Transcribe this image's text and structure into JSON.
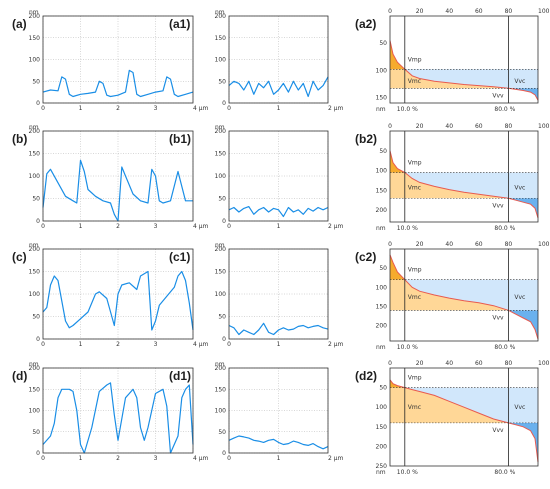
{
  "colors": {
    "profile": "#1a8ee6",
    "peak_fill": "#f6a623",
    "core_material_fill": "#ffd591",
    "core_void_fill": "#cfe6fb",
    "valley_void_fill": "#5aa9ec",
    "abbott_curve": "#e85a4f"
  },
  "annotations": {
    "vmp": "Vmp",
    "vmc": "Vmc",
    "vvc": "Vvc",
    "vvv": "Vvv",
    "mr1": "10.0 %",
    "mr2": "80.0 %"
  },
  "chart_data": [
    {
      "panel": "(a)",
      "type": "line",
      "ylabel": "nm",
      "ylim": [
        0,
        200
      ],
      "y_ticks": [
        0,
        50,
        100,
        150,
        200
      ],
      "xlim": [
        0,
        4
      ],
      "x_ticks": [
        "0",
        "1",
        "2",
        "3",
        "4 µm"
      ],
      "x": [
        0,
        0.2,
        0.4,
        0.5,
        0.6,
        0.7,
        0.8,
        1.0,
        1.2,
        1.4,
        1.5,
        1.6,
        1.7,
        1.8,
        2.0,
        2.2,
        2.3,
        2.4,
        2.5,
        2.6,
        2.8,
        3.0,
        3.2,
        3.3,
        3.4,
        3.5,
        3.6,
        3.8,
        4.0
      ],
      "y": [
        25,
        30,
        28,
        60,
        55,
        20,
        15,
        20,
        22,
        25,
        50,
        45,
        18,
        15,
        18,
        25,
        75,
        70,
        20,
        15,
        20,
        25,
        28,
        60,
        55,
        20,
        15,
        20,
        25
      ]
    },
    {
      "panel": "(a1)",
      "type": "line",
      "ylabel": "nm",
      "ylim": [
        0,
        200
      ],
      "y_ticks": [
        0,
        50,
        100,
        150,
        200
      ],
      "xlim": [
        0,
        2
      ],
      "x_ticks": [
        "0",
        "1",
        "2 µm"
      ],
      "x": [
        0,
        0.1,
        0.2,
        0.3,
        0.4,
        0.5,
        0.6,
        0.7,
        0.8,
        0.9,
        1.0,
        1.1,
        1.2,
        1.3,
        1.4,
        1.5,
        1.6,
        1.7,
        1.8,
        1.9,
        2.0
      ],
      "y": [
        40,
        50,
        45,
        30,
        50,
        20,
        45,
        35,
        50,
        20,
        30,
        45,
        25,
        50,
        30,
        45,
        15,
        50,
        30,
        40,
        60
      ]
    },
    {
      "panel": "(a2)",
      "type": "area",
      "ylabel": "nm",
      "ylim": [
        0,
        160
      ],
      "y_ticks": [
        50,
        100,
        150
      ],
      "xlim": [
        0,
        100
      ],
      "x_ticks": [
        "0",
        "20",
        "40",
        "60",
        "80",
        "100 %"
      ],
      "x": [
        0,
        2,
        5,
        10,
        15,
        20,
        30,
        40,
        50,
        60,
        70,
        80,
        85,
        90,
        95,
        98,
        100
      ],
      "y": [
        45,
        70,
        85,
        98,
        110,
        115,
        120,
        123,
        126,
        128,
        130,
        133,
        135,
        137,
        140,
        145,
        155
      ]
    },
    {
      "panel": "(b)",
      "type": "line",
      "ylabel": "nm",
      "ylim": [
        0,
        200
      ],
      "y_ticks": [
        0,
        50,
        100,
        150,
        200
      ],
      "xlim": [
        0,
        4
      ],
      "x_ticks": [
        "0",
        "1",
        "2",
        "3",
        "4 µm"
      ],
      "x": [
        0,
        0.1,
        0.2,
        0.4,
        0.6,
        0.8,
        0.9,
        1.0,
        1.1,
        1.2,
        1.4,
        1.6,
        1.8,
        1.9,
        2.0,
        2.1,
        2.2,
        2.4,
        2.6,
        2.8,
        2.9,
        3.0,
        3.1,
        3.2,
        3.4,
        3.6,
        3.8,
        4.0
      ],
      "y": [
        30,
        105,
        115,
        85,
        55,
        45,
        40,
        135,
        110,
        70,
        55,
        45,
        40,
        15,
        0,
        120,
        100,
        60,
        45,
        40,
        115,
        100,
        45,
        40,
        45,
        110,
        45,
        45
      ]
    },
    {
      "panel": "(b1)",
      "type": "line",
      "ylabel": "nm",
      "ylim": [
        0,
        200
      ],
      "y_ticks": [
        0,
        50,
        100,
        150,
        200
      ],
      "xlim": [
        0,
        2
      ],
      "x_ticks": [
        "0",
        "1",
        "2 µm"
      ],
      "x": [
        0,
        0.1,
        0.2,
        0.3,
        0.4,
        0.5,
        0.6,
        0.7,
        0.8,
        0.9,
        1.0,
        1.1,
        1.2,
        1.3,
        1.4,
        1.5,
        1.6,
        1.7,
        1.8,
        1.9,
        2.0
      ],
      "y": [
        25,
        30,
        20,
        28,
        32,
        15,
        25,
        30,
        20,
        28,
        25,
        10,
        30,
        20,
        25,
        15,
        28,
        22,
        30,
        25,
        30
      ]
    },
    {
      "panel": "(b2)",
      "type": "area",
      "ylabel": "nm",
      "ylim": [
        0,
        230
      ],
      "y_ticks": [
        50,
        100,
        150,
        200
      ],
      "xlim": [
        0,
        100
      ],
      "x_ticks": [
        "0",
        "20",
        "40",
        "60",
        "80",
        "100 %"
      ],
      "x": [
        0,
        2,
        5,
        10,
        15,
        20,
        30,
        40,
        50,
        60,
        70,
        80,
        85,
        90,
        95,
        98,
        100
      ],
      "y": [
        50,
        80,
        95,
        105,
        120,
        130,
        140,
        148,
        155,
        160,
        165,
        170,
        175,
        180,
        185,
        195,
        220
      ]
    },
    {
      "panel": "(c)",
      "type": "line",
      "ylabel": "nm",
      "ylim": [
        0,
        200
      ],
      "y_ticks": [
        0,
        50,
        100,
        150,
        200
      ],
      "xlim": [
        0,
        4
      ],
      "x_ticks": [
        "0",
        "1",
        "2",
        "3",
        "4 µm"
      ],
      "x": [
        0,
        0.1,
        0.2,
        0.3,
        0.4,
        0.6,
        0.7,
        0.8,
        1.0,
        1.2,
        1.4,
        1.5,
        1.7,
        1.9,
        2.0,
        2.1,
        2.3,
        2.5,
        2.6,
        2.8,
        2.9,
        3.0,
        3.1,
        3.3,
        3.5,
        3.6,
        3.7,
        3.8,
        3.9,
        4.0
      ],
      "y": [
        60,
        70,
        120,
        140,
        130,
        40,
        25,
        30,
        45,
        60,
        100,
        105,
        90,
        30,
        100,
        120,
        125,
        110,
        140,
        150,
        20,
        40,
        75,
        95,
        115,
        140,
        150,
        130,
        80,
        20
      ]
    },
    {
      "panel": "(c1)",
      "type": "line",
      "ylabel": "nm",
      "ylim": [
        0,
        200
      ],
      "y_ticks": [
        0,
        50,
        100,
        150,
        200
      ],
      "xlim": [
        0,
        2
      ],
      "x_ticks": [
        "0",
        "1",
        "2 µm"
      ],
      "x": [
        0,
        0.1,
        0.2,
        0.3,
        0.4,
        0.5,
        0.6,
        0.7,
        0.8,
        0.9,
        1.0,
        1.1,
        1.2,
        1.3,
        1.4,
        1.5,
        1.6,
        1.7,
        1.8,
        1.9,
        2.0
      ],
      "y": [
        30,
        25,
        10,
        20,
        15,
        10,
        20,
        35,
        15,
        10,
        20,
        25,
        20,
        22,
        28,
        30,
        25,
        28,
        30,
        25,
        22
      ]
    },
    {
      "panel": "(c2)",
      "type": "area",
      "ylabel": "nm",
      "ylim": [
        0,
        240
      ],
      "y_ticks": [
        50,
        100,
        150,
        200
      ],
      "xlim": [
        0,
        100
      ],
      "x_ticks": [
        "0",
        "20",
        "40",
        "60",
        "80",
        "100 %"
      ],
      "x": [
        0,
        2,
        5,
        10,
        15,
        20,
        30,
        40,
        50,
        60,
        70,
        80,
        85,
        90,
        95,
        98,
        100
      ],
      "y": [
        15,
        35,
        60,
        80,
        100,
        110,
        120,
        128,
        135,
        140,
        148,
        160,
        170,
        180,
        190,
        210,
        235
      ]
    },
    {
      "panel": "(d)",
      "type": "line",
      "ylabel": "nm",
      "ylim": [
        0,
        200
      ],
      "y_ticks": [
        0,
        50,
        100,
        150,
        200
      ],
      "xlim": [
        0,
        4
      ],
      "x_ticks": [
        "0",
        "1",
        "2",
        "3",
        "4 µm"
      ],
      "x": [
        0,
        0.2,
        0.3,
        0.4,
        0.5,
        0.7,
        0.8,
        0.9,
        1.0,
        1.1,
        1.3,
        1.5,
        1.7,
        1.8,
        1.9,
        2.0,
        2.2,
        2.4,
        2.5,
        2.6,
        2.7,
        2.8,
        3.0,
        3.2,
        3.3,
        3.4,
        3.6,
        3.7,
        3.8,
        3.9,
        4.0
      ],
      "y": [
        20,
        40,
        70,
        130,
        150,
        150,
        145,
        100,
        20,
        0,
        60,
        145,
        160,
        165,
        90,
        30,
        130,
        150,
        130,
        60,
        30,
        60,
        140,
        150,
        110,
        0,
        40,
        130,
        150,
        160,
        20
      ]
    },
    {
      "panel": "(d1)",
      "type": "line",
      "ylabel": "nm",
      "ylim": [
        0,
        200
      ],
      "y_ticks": [
        0,
        50,
        100,
        150,
        200
      ],
      "xlim": [
        0,
        2
      ],
      "x_ticks": [
        "0",
        "1",
        "2 µm"
      ],
      "x": [
        0,
        0.1,
        0.2,
        0.3,
        0.4,
        0.5,
        0.6,
        0.7,
        0.8,
        0.9,
        1.0,
        1.1,
        1.2,
        1.3,
        1.4,
        1.5,
        1.6,
        1.7,
        1.8,
        1.9,
        2.0
      ],
      "y": [
        30,
        35,
        40,
        38,
        35,
        30,
        28,
        25,
        30,
        32,
        25,
        20,
        22,
        28,
        25,
        20,
        18,
        22,
        15,
        10,
        15
      ]
    },
    {
      "panel": "(d2)",
      "type": "area",
      "ylabel": "nm",
      "ylim": [
        0,
        250
      ],
      "y_ticks": [
        50,
        100,
        150,
        200,
        250
      ],
      "xlim": [
        0,
        100
      ],
      "x_ticks": [
        "0",
        "20",
        "40",
        "60",
        "80",
        "100 %"
      ],
      "x": [
        0,
        2,
        5,
        10,
        15,
        20,
        30,
        40,
        50,
        60,
        70,
        80,
        85,
        90,
        95,
        98,
        100
      ],
      "y": [
        30,
        40,
        45,
        50,
        55,
        60,
        70,
        85,
        100,
        115,
        130,
        140,
        145,
        150,
        160,
        180,
        240
      ]
    }
  ]
}
